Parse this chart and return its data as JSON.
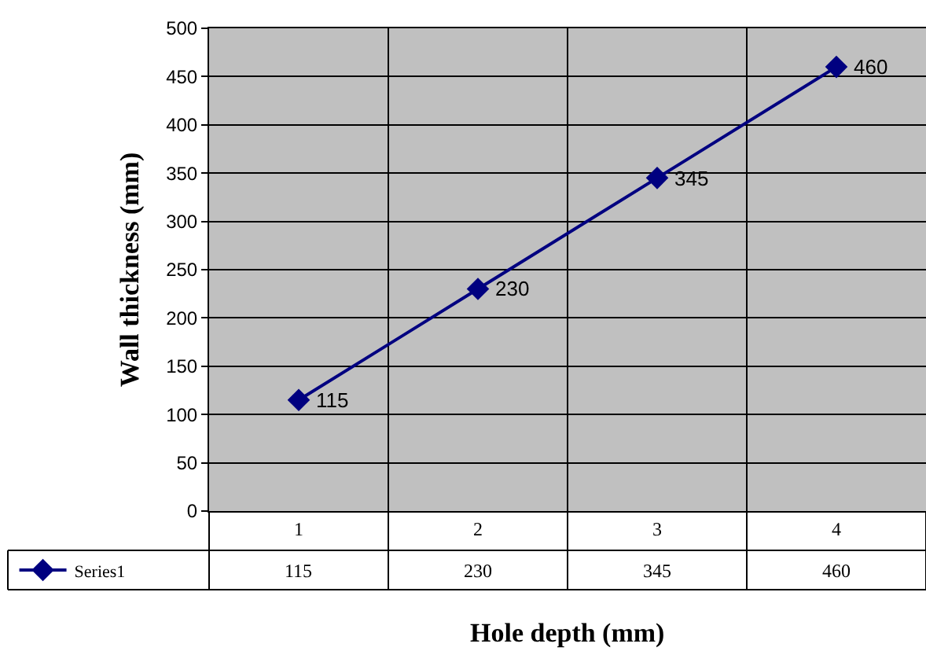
{
  "chart_data": {
    "type": "line",
    "xlabel": "Hole depth (mm)",
    "ylabel": "Wall thickness (mm)",
    "categories": [
      "1",
      "2",
      "3",
      "4"
    ],
    "series": [
      {
        "name": "Series1",
        "color": "#000080",
        "values": [
          115,
          230,
          345,
          460
        ],
        "value_labels": [
          "115",
          "230",
          "345",
          "460"
        ]
      }
    ],
    "ylim": [
      0,
      500
    ],
    "yticks": [
      0,
      50,
      100,
      150,
      200,
      250,
      300,
      350,
      400,
      450,
      500
    ],
    "annotations": [
      "115",
      "230",
      "345",
      "460"
    ],
    "grid": true,
    "marker": "diamond",
    "line_style": "solid",
    "legend": "bottom"
  }
}
